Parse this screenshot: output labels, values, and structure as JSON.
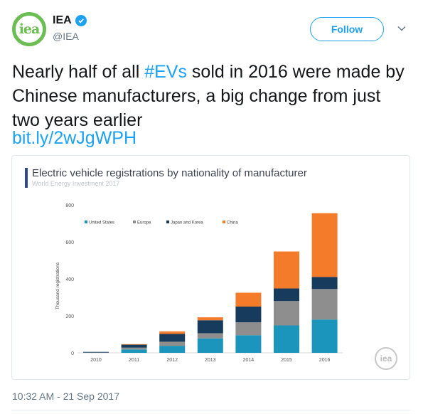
{
  "account": {
    "name": "IEA",
    "handle": "@IEA",
    "avatar_text": "iea",
    "verified_icon": "verified-badge-icon"
  },
  "follow_button": {
    "label": "Follow"
  },
  "tweet": {
    "text_before": "Nearly half of all ",
    "hashtag": "#EVs",
    "text_after": " sold in 2016 were made by Chinese manufacturers, a big change from just two years earlier",
    "link": "bit.ly/2wJgWPH"
  },
  "card": {
    "title": "Electric vehicle registrations by nationality of manufacturer",
    "subtitle": "World Energy Investment 2017",
    "watermark": "iea"
  },
  "timestamp": "10:32 AM - 21 Sep 2017",
  "colors": {
    "United States": "#1b95bc",
    "Europe": "#8e8e8e",
    "Japan and Korea": "#163b5c",
    "China": "#f47b2a",
    "accent": "#1da1f2"
  },
  "chart_data": {
    "type": "bar",
    "stacked": true,
    "title": "Electric vehicle registrations by nationality of manufacturer",
    "subtitle": "World Energy Investment 2017",
    "xlabel": "",
    "ylabel": "Thousand registrations",
    "ylim": [
      0,
      800
    ],
    "yticks": [
      0,
      200,
      400,
      600,
      800
    ],
    "categories": [
      "2010",
      "2011",
      "2012",
      "2013",
      "2014",
      "2015",
      "2016"
    ],
    "legend_position": "top-left",
    "series": [
      {
        "name": "United States",
        "values": [
          1,
          18,
          38,
          78,
          95,
          148,
          180
        ]
      },
      {
        "name": "Europe",
        "values": [
          1,
          10,
          22,
          28,
          70,
          132,
          165
        ]
      },
      {
        "name": "Japan and Korea",
        "values": [
          3,
          16,
          42,
          70,
          85,
          68,
          65
        ]
      },
      {
        "name": "China",
        "values": [
          0,
          3,
          14,
          16,
          75,
          200,
          345
        ]
      }
    ]
  }
}
